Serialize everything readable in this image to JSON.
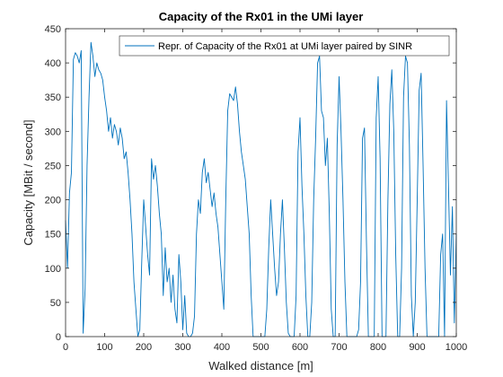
{
  "chart_data": {
    "type": "line",
    "title": "Capacity of the Rx01 in the UMi layer",
    "xlabel": "Walked distance [m]",
    "ylabel": "Capacity [MBit / second]",
    "xlim": [
      0,
      1000
    ],
    "ylim": [
      0,
      450
    ],
    "xticks": [
      0,
      100,
      200,
      300,
      400,
      500,
      600,
      700,
      800,
      900,
      1000
    ],
    "yticks": [
      0,
      50,
      100,
      150,
      200,
      250,
      300,
      350,
      400,
      450
    ],
    "grid": false,
    "legend": {
      "position": "top-right"
    },
    "colors": {
      "series": "#0072BD",
      "axes": "#262626",
      "background": "#ffffff"
    },
    "series": [
      {
        "name": "Repr. of Capacity of the Rx01 at UMi layer paired by SINR",
        "x": [
          0,
          5,
          10,
          15,
          20,
          25,
          30,
          35,
          40,
          45,
          50,
          55,
          60,
          65,
          70,
          75,
          80,
          85,
          90,
          95,
          100,
          105,
          110,
          115,
          120,
          125,
          130,
          135,
          140,
          145,
          150,
          155,
          160,
          165,
          170,
          175,
          180,
          185,
          190,
          195,
          200,
          205,
          210,
          215,
          220,
          225,
          230,
          235,
          240,
          245,
          250,
          255,
          260,
          265,
          270,
          275,
          280,
          285,
          290,
          295,
          300,
          305,
          310,
          315,
          320,
          325,
          330,
          335,
          340,
          345,
          350,
          355,
          360,
          365,
          370,
          375,
          380,
          385,
          390,
          395,
          400,
          405,
          410,
          415,
          420,
          425,
          430,
          435,
          440,
          445,
          450,
          455,
          460,
          465,
          470,
          475,
          480,
          485,
          490,
          495,
          500,
          505,
          510,
          515,
          520,
          525,
          530,
          535,
          540,
          545,
          550,
          555,
          560,
          565,
          570,
          575,
          580,
          585,
          590,
          595,
          600,
          605,
          610,
          615,
          620,
          625,
          630,
          635,
          640,
          645,
          650,
          655,
          660,
          665,
          670,
          675,
          680,
          685,
          690,
          695,
          700,
          705,
          710,
          715,
          720,
          725,
          730,
          735,
          740,
          745,
          750,
          755,
          760,
          765,
          770,
          775,
          780,
          785,
          790,
          795,
          800,
          805,
          810,
          815,
          820,
          825,
          830,
          835,
          840,
          845,
          850,
          855,
          860,
          865,
          870,
          875,
          880,
          885,
          890,
          895,
          900,
          905,
          910,
          915,
          920,
          925,
          930,
          935,
          940,
          945,
          950,
          955,
          960,
          965,
          970,
          975,
          980,
          985,
          990,
          995,
          1000
        ],
        "y": [
          170,
          100,
          210,
          240,
          405,
          415,
          410,
          400,
          418,
          5,
          70,
          250,
          350,
          430,
          410,
          380,
          400,
          390,
          385,
          375,
          350,
          330,
          300,
          320,
          290,
          310,
          300,
          280,
          305,
          290,
          260,
          270,
          240,
          200,
          150,
          80,
          40,
          0,
          10,
          110,
          200,
          160,
          120,
          90,
          260,
          230,
          250,
          220,
          180,
          150,
          60,
          130,
          80,
          100,
          50,
          90,
          40,
          20,
          120,
          80,
          10,
          60,
          5,
          0,
          0,
          5,
          30,
          150,
          200,
          180,
          240,
          260,
          225,
          240,
          215,
          190,
          210,
          180,
          160,
          120,
          80,
          40,
          200,
          330,
          355,
          350,
          345,
          365,
          340,
          300,
          270,
          250,
          230,
          190,
          150,
          60,
          0,
          0,
          0,
          0,
          0,
          0,
          0,
          40,
          130,
          200,
          150,
          100,
          60,
          80,
          150,
          200,
          130,
          50,
          5,
          0,
          0,
          0,
          60,
          270,
          320,
          220,
          150,
          60,
          0,
          0,
          50,
          200,
          290,
          400,
          410,
          330,
          320,
          250,
          290,
          180,
          40,
          0,
          0,
          280,
          380,
          300,
          200,
          80,
          0,
          0,
          0,
          0,
          0,
          0,
          10,
          80,
          290,
          305,
          140,
          0,
          0,
          0,
          0,
          320,
          380,
          260,
          0,
          0,
          0,
          200,
          340,
          390,
          300,
          120,
          0,
          0,
          100,
          350,
          410,
          400,
          280,
          60,
          0,
          50,
          200,
          360,
          385,
          250,
          100,
          0,
          0,
          0,
          0,
          0,
          0,
          0,
          120,
          150,
          0,
          345,
          220,
          90,
          190,
          20,
          150
        ]
      }
    ]
  }
}
